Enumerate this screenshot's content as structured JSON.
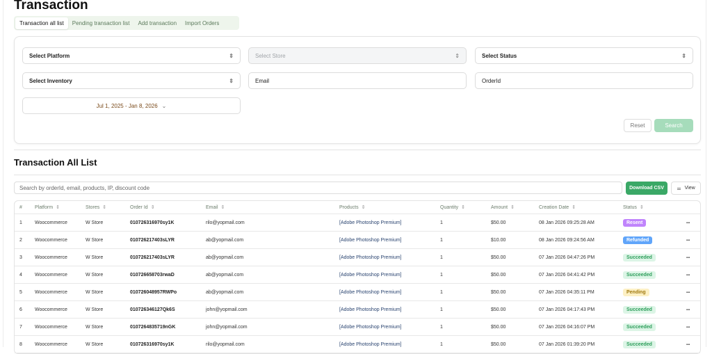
{
  "title": "Transaction",
  "tabs": [
    "Transaction all list",
    "Pending transaction list",
    "Add transaction",
    "Import Orders"
  ],
  "filters": {
    "platform": "Select Platform",
    "store": "Select Store",
    "status": "Select Status",
    "inventory": "Select Inventory",
    "email": "Email",
    "order_id": "OrderId",
    "date_range": "Jul 1, 2025 - Jan 8, 2026",
    "reset": "Reset",
    "search": "Search"
  },
  "list": {
    "title": "Transaction All List",
    "search_placeholder": "Search by orderId, email, products, IP, discount code",
    "download": "Download CSV",
    "view": "View"
  },
  "columns": [
    "#",
    "Platform",
    "Stores",
    "Order Id",
    "Email",
    "Products",
    "Quantity",
    "Amount",
    "Creation Date",
    "Status"
  ],
  "status_colors": {
    "Resent": "#c084fc",
    "Refunded": "#60a5fa",
    "Succeeded": "#dcf5e6",
    "Pending": "#fdf0c4"
  },
  "rows": [
    {
      "n": "1",
      "platform": "Woocommerce",
      "store": "W Store",
      "order": "010726316970sy1K",
      "email": "rilo@yopmail.com",
      "product": "[Adobe Photoshop Premium]",
      "qty": "1",
      "amount": "$50.00",
      "date": "08 Jan 2026 09:25:28 AM",
      "status": "Resent"
    },
    {
      "n": "2",
      "platform": "Woocommerce",
      "store": "W Store",
      "order": "010726217403sLYR",
      "email": "ab@yopmail.com",
      "product": "[Adobe Photoshop Premium]",
      "qty": "1",
      "amount": "$10.00",
      "date": "08 Jan 2026 09:24:56 AM",
      "status": "Refunded"
    },
    {
      "n": "3",
      "platform": "Woocommerce",
      "store": "W Store",
      "order": "010726217403sLYR",
      "email": "ab@yopmail.com",
      "product": "[Adobe Photoshop Premium]",
      "qty": "1",
      "amount": "$50.00",
      "date": "07 Jan 2026 04:47:26 PM",
      "status": "Succeeded"
    },
    {
      "n": "4",
      "platform": "Woocommerce",
      "store": "W Store",
      "order": "010726658703rwaD",
      "email": "ab@yopmail.com",
      "product": "[Adobe Photoshop Premium]",
      "qty": "1",
      "amount": "$50.00",
      "date": "07 Jan 2026 04:41:42 PM",
      "status": "Succeeded"
    },
    {
      "n": "5",
      "platform": "Woocommerce",
      "store": "W Store",
      "order": "010726048957RWPo",
      "email": "ab@yopmail.com",
      "product": "[Adobe Photoshop Premium]",
      "qty": "1",
      "amount": "$50.00",
      "date": "07 Jan 2026 04:35:11 PM",
      "status": "Pending"
    },
    {
      "n": "6",
      "platform": "Woocommerce",
      "store": "W Store",
      "order": "010726346127Qk6S",
      "email": "john@yopmail.com",
      "product": "[Adobe Photoshop Premium]",
      "qty": "1",
      "amount": "$50.00",
      "date": "07 Jan 2026 04:17:43 PM",
      "status": "Succeeded"
    },
    {
      "n": "7",
      "platform": "Woocommerce",
      "store": "W Store",
      "order": "0107264835719nGK",
      "email": "john@yopmail.com",
      "product": "[Adobe Photoshop Premium]",
      "qty": "1",
      "amount": "$50.00",
      "date": "07 Jan 2026 04:16:07 PM",
      "status": "Succeeded"
    },
    {
      "n": "8",
      "platform": "Woocommerce",
      "store": "W Store",
      "order": "010726316970sy1K",
      "email": "rilo@yopmail.com",
      "product": "[Adobe Photoshop Premium]",
      "qty": "1",
      "amount": "$50.00",
      "date": "07 Jan 2026 01:39:20 PM",
      "status": "Succeeded"
    }
  ]
}
